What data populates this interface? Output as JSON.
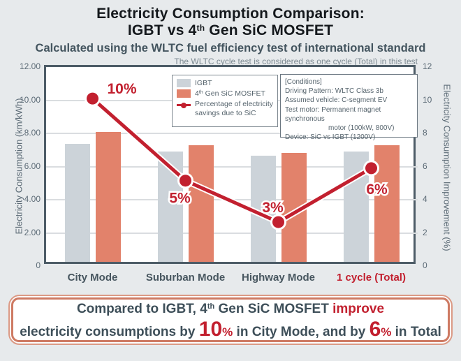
{
  "title": {
    "line1": "Electricity Consumption Comparison:",
    "line2_pre": "IGBT vs 4",
    "line2_sup": "th",
    "line2_post": " Gen SiC MOSFET"
  },
  "subtitle": "Calculated using the WLTC fuel efficiency test of international standard",
  "note": "The WLTC cycle test is considered as one cycle (Total) in this test",
  "legend": {
    "igbt_label": "IGBT",
    "sic_pre": "4",
    "sic_sup": "th",
    "sic_post": " Gen SiC MOSFET",
    "savings_label": "Percentage of electricity savings due to SiC"
  },
  "conditions": {
    "lines": [
      "[Conditions]",
      "Driving Pattern: WLTC Class 3b",
      "Assumed vehicle: C-segment EV",
      "Test motor: Permanent magnet synchronous",
      "motor (100kW, 800V)",
      "Device: SiC vs IGBT (1200V)"
    ]
  },
  "banner": {
    "line1_pre": "Compared to IGBT, 4",
    "line1_sup": "th",
    "line1_mid": " Gen SiC MOSFET ",
    "line1_highlight": "improve",
    "line2_pre": "electricity consumptions by ",
    "line2_big1": "10",
    "line2_pct1": "%",
    "line2_mid": " in City Mode, and by ",
    "line2_big2": "6",
    "line2_pct2": "%",
    "line2_post": " in Total"
  },
  "colors": {
    "accent_red": "#C2202F",
    "bar_igbt": "#CCD3D9",
    "bar_sic": "#E2826B",
    "page_bg": "#E7EAEC",
    "plot_border": "#4D5C67",
    "gridline": "#DADDE0"
  },
  "chart_data": {
    "type": "bar",
    "title": "Electricity Consumption Comparison: IGBT vs 4th Gen SiC MOSFET",
    "categories": [
      "City Mode",
      "Suburban Mode",
      "Highway Mode",
      "1 cycle (Total)"
    ],
    "series": [
      {
        "name": "IGBT",
        "type": "bar",
        "color": "#CCD3D9",
        "values": [
          7.1,
          6.65,
          6.4,
          6.65
        ]
      },
      {
        "name": "4th Gen SiC MOSFET",
        "type": "bar",
        "color": "#E2826B",
        "values": [
          7.85,
          7.05,
          6.55,
          7.05
        ]
      },
      {
        "name": "Percentage of electricity savings due to SiC",
        "type": "line",
        "color": "#C2202F",
        "values": [
          10.1,
          5.15,
          2.65,
          5.9
        ],
        "labels": [
          "10%",
          "5%",
          "3%",
          "6%"
        ]
      }
    ],
    "y_left": {
      "label": "Electricity Consumption (km/kWh)",
      "min": 0,
      "max": 12,
      "ticks": [
        "12.00",
        "10.00",
        "8.00",
        "6.00",
        "4.00",
        "2.00",
        "0"
      ]
    },
    "y_right": {
      "label": "Electricity Consumption Improvement (%)",
      "min": 0,
      "max": 12,
      "ticks": [
        "12",
        "10",
        "8",
        "6",
        "4",
        "2",
        "0"
      ]
    },
    "grid": true,
    "legend_position": "inside-top"
  }
}
